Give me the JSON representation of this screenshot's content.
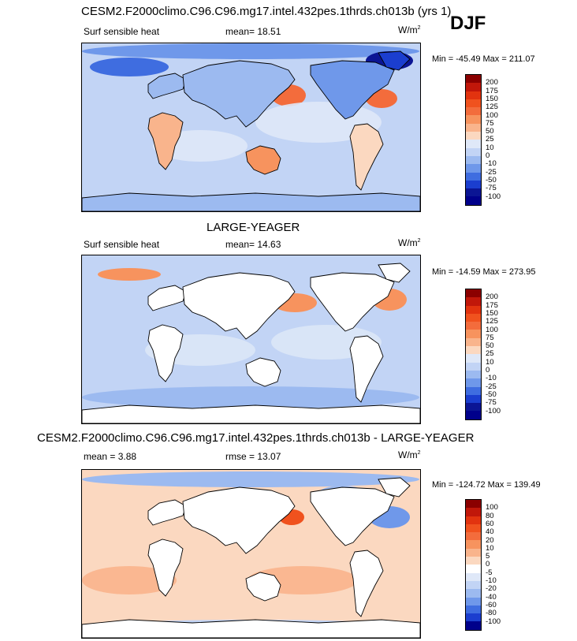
{
  "panels": [
    {
      "id": "top",
      "title": "CESM2.F2000climo.C96.C96.mg17.intel.432pes.1thrds.ch013b (yrs 1)",
      "season": "DJF",
      "variable": "Surf sensible heat",
      "stat_label": "mean=",
      "stat_value": "18.51",
      "units": "W/m",
      "units_exp": "2",
      "min_max": "Min = -45.49 Max = 211.07",
      "levels": [
        "200",
        "175",
        "150",
        "125",
        "100",
        "75",
        "50",
        "25",
        "10",
        "0",
        "-10",
        "-25",
        "-50",
        "-75",
        "-100"
      ]
    },
    {
      "id": "middle",
      "title": "LARGE-YEAGER",
      "variable": "Surf sensible heat",
      "stat_label": "mean=",
      "stat_value": "14.63",
      "units": "W/m",
      "units_exp": "2",
      "min_max": "Min = -14.59 Max = 273.95",
      "levels": [
        "200",
        "175",
        "150",
        "125",
        "100",
        "75",
        "50",
        "25",
        "10",
        "0",
        "-10",
        "-25",
        "-50",
        "-75",
        "-100"
      ]
    },
    {
      "id": "bottom",
      "title": "CESM2.F2000climo.C96.C96.mg17.intel.432pes.1thrds.ch013b - LARGE-YEAGER",
      "stat_label": "mean =",
      "stat_value": "3.88",
      "stat2_label": "rmse =",
      "stat2_value": "13.07",
      "units": "W/m",
      "units_exp": "2",
      "min_max": "Min = -124.72 Max = 139.49",
      "levels": [
        "100",
        "80",
        "60",
        "40",
        "20",
        "10",
        "5",
        "0",
        "-5",
        "-10",
        "-20",
        "-40",
        "-60",
        "-80",
        "-100"
      ]
    }
  ],
  "colors": {
    "abs_scale": [
      "#8b0000",
      "#c1170a",
      "#e2330f",
      "#f0521e",
      "#f36c3c",
      "#f7935e",
      "#f9b48c",
      "#fbd8c0",
      "#dfe8f8",
      "#c2d4f5",
      "#9cbaf0",
      "#6f98ea",
      "#3f6de0",
      "#1b3ecf",
      "#0b1594",
      "#00008b"
    ],
    "diff_scale": [
      "#8b0000",
      "#c1170a",
      "#e2330f",
      "#f0521e",
      "#f36c3c",
      "#f7935e",
      "#f9b48c",
      "#fbd8c0",
      "#ffffff",
      "#dfe8f8",
      "#c2d4f5",
      "#9cbaf0",
      "#6f98ea",
      "#3f6de0",
      "#1b3ecf",
      "#00008b"
    ],
    "land_blank": "#ffffff",
    "coast": "#000000"
  },
  "chart_data": [
    {
      "type": "heatmap",
      "title": "CESM2.F2000climo.C96.C96.mg17.intel.432pes.1thrds.ch013b (yrs 1)",
      "field": "Surf sensible heat",
      "season": "DJF",
      "units": "W/m2",
      "mean": 18.51,
      "min": -45.49,
      "max": 211.07,
      "contour_levels": [
        -100,
        -75,
        -50,
        -25,
        -10,
        0,
        10,
        25,
        50,
        75,
        100,
        125,
        150,
        175,
        200
      ]
    },
    {
      "type": "heatmap",
      "title": "LARGE-YEAGER",
      "field": "Surf sensible heat",
      "units": "W/m2",
      "mean": 14.63,
      "min": -14.59,
      "max": 273.95,
      "contour_levels": [
        -100,
        -75,
        -50,
        -25,
        -10,
        0,
        10,
        25,
        50,
        75,
        100,
        125,
        150,
        175,
        200
      ]
    },
    {
      "type": "heatmap",
      "title": "CESM2.F2000climo.C96.C96.mg17.intel.432pes.1thrds.ch013b - LARGE-YEAGER",
      "units": "W/m2",
      "mean": 3.88,
      "rmse": 13.07,
      "min": -124.72,
      "max": 139.49,
      "contour_levels": [
        -100,
        -80,
        -60,
        -40,
        -20,
        -10,
        -5,
        0,
        5,
        10,
        20,
        40,
        60,
        80,
        100
      ]
    }
  ]
}
